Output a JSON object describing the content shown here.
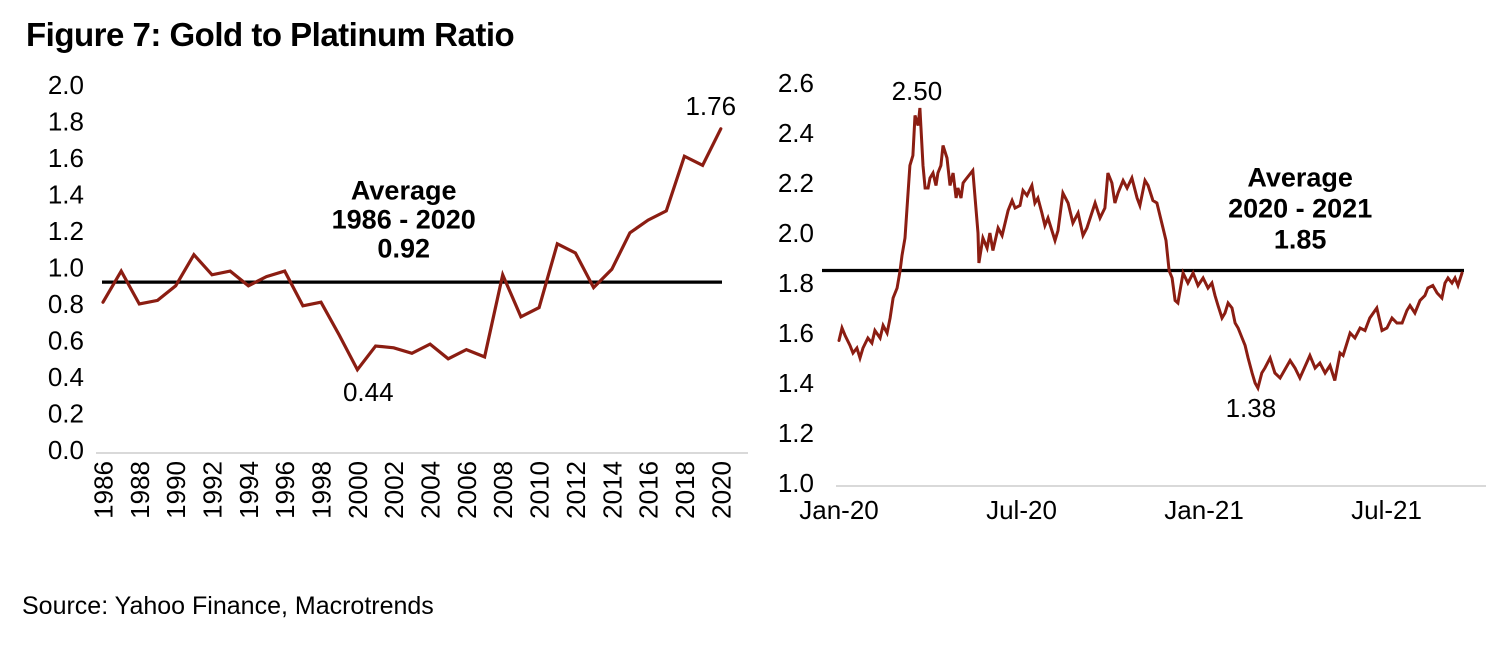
{
  "figure": {
    "title": "Figure 7: Gold to Platinum Ratio",
    "source": "Source: Yahoo Finance, Macrotrends"
  },
  "colors": {
    "series_line": "#8B1D12",
    "average_line": "#000000",
    "axis_line": "#D9D9D9",
    "text": "#000000",
    "background": "#FFFFFF"
  },
  "chart_data": [
    {
      "type": "line",
      "name": "gold-to-platinum-ratio-annual",
      "categories": [
        1986,
        1987,
        1988,
        1989,
        1990,
        1991,
        1992,
        1993,
        1994,
        1995,
        1996,
        1997,
        1998,
        1999,
        2000,
        2001,
        2002,
        2003,
        2004,
        2005,
        2006,
        2007,
        2008,
        2009,
        2010,
        2011,
        2012,
        2013,
        2014,
        2015,
        2016,
        2017,
        2018,
        2019,
        2020
      ],
      "values": [
        0.81,
        0.98,
        0.8,
        0.82,
        0.9,
        1.07,
        0.96,
        0.98,
        0.9,
        0.95,
        0.98,
        0.79,
        0.81,
        0.63,
        0.44,
        0.57,
        0.56,
        0.53,
        0.58,
        0.5,
        0.55,
        0.51,
        0.96,
        0.73,
        0.78,
        1.13,
        1.08,
        0.89,
        0.99,
        1.19,
        1.26,
        1.31,
        1.61,
        1.56,
        1.76
      ],
      "xlabel": "",
      "ylabel": "",
      "ylim": [
        0.0,
        2.0
      ],
      "ytick_labels": [
        "0.0",
        "0.2",
        "0.4",
        "0.6",
        "0.8",
        "1.0",
        "1.2",
        "1.4",
        "1.6",
        "1.8",
        "2.0"
      ],
      "xtick_labels": [
        "1986",
        "1988",
        "1990",
        "1992",
        "1994",
        "1996",
        "1998",
        "2000",
        "2002",
        "2004",
        "2006",
        "2008",
        "2010",
        "2012",
        "2014",
        "2016",
        "2018",
        "2020"
      ],
      "xtick_label_rotation": -90,
      "grid": false,
      "average_line": {
        "value": 0.92,
        "label_lines": [
          "Average",
          "1986 - 2020",
          "0.92"
        ],
        "label_anchor_x": 2002.55,
        "label_line_y": [
          1.424,
          1.266,
          1.107
        ]
      },
      "point_labels": [
        {
          "text": "1.76",
          "x": 2019.45,
          "y": 1.885
        },
        {
          "text": "0.44",
          "x": 2000.6,
          "y": 0.318
        }
      ]
    },
    {
      "type": "line",
      "name": "gold-to-platinum-ratio-2020-2021",
      "x_unit": "months-since-Jan-2020",
      "points": [
        [
          0,
          1.57
        ],
        [
          0.1,
          1.62
        ],
        [
          0.2,
          1.59
        ],
        [
          0.36,
          1.55
        ],
        [
          0.46,
          1.52
        ],
        [
          0.59,
          1.54
        ],
        [
          0.69,
          1.5
        ],
        [
          0.79,
          1.54
        ],
        [
          0.95,
          1.58
        ],
        [
          1.08,
          1.56
        ],
        [
          1.18,
          1.61
        ],
        [
          1.35,
          1.58
        ],
        [
          1.45,
          1.63
        ],
        [
          1.58,
          1.6
        ],
        [
          1.68,
          1.66
        ],
        [
          1.78,
          1.74
        ],
        [
          1.91,
          1.78
        ],
        [
          2.01,
          1.85
        ],
        [
          2.07,
          1.91
        ],
        [
          2.17,
          1.98
        ],
        [
          2.33,
          2.27
        ],
        [
          2.43,
          2.31
        ],
        [
          2.5,
          2.47
        ],
        [
          2.6,
          2.43
        ],
        [
          2.66,
          2.5
        ],
        [
          2.76,
          2.27
        ],
        [
          2.83,
          2.18
        ],
        [
          2.93,
          2.18
        ],
        [
          2.99,
          2.22
        ],
        [
          3.09,
          2.24
        ],
        [
          3.19,
          2.19
        ],
        [
          3.25,
          2.24
        ],
        [
          3.35,
          2.27
        ],
        [
          3.42,
          2.35
        ],
        [
          3.55,
          2.3
        ],
        [
          3.65,
          2.19
        ],
        [
          3.75,
          2.24
        ],
        [
          3.85,
          2.14
        ],
        [
          3.91,
          2.18
        ],
        [
          4.01,
          2.14
        ],
        [
          4.08,
          2.2
        ],
        [
          4.14,
          2.21
        ],
        [
          4.4,
          2.25
        ],
        [
          4.57,
          2.0
        ],
        [
          4.6,
          1.88
        ],
        [
          4.73,
          1.98
        ],
        [
          4.87,
          1.94
        ],
        [
          4.96,
          2.0
        ],
        [
          5.06,
          1.93
        ],
        [
          5.23,
          2.02
        ],
        [
          5.36,
          1.99
        ],
        [
          5.56,
          2.09
        ],
        [
          5.69,
          2.13
        ],
        [
          5.79,
          2.1
        ],
        [
          5.95,
          2.11
        ],
        [
          6.05,
          2.17
        ],
        [
          6.18,
          2.15
        ],
        [
          6.34,
          2.19
        ],
        [
          6.44,
          2.12
        ],
        [
          6.54,
          2.14
        ],
        [
          6.67,
          2.08
        ],
        [
          6.77,
          2.03
        ],
        [
          6.87,
          2.06
        ],
        [
          7.1,
          1.97
        ],
        [
          7.2,
          2.01
        ],
        [
          7.36,
          2.16
        ],
        [
          7.53,
          2.12
        ],
        [
          7.69,
          2.04
        ],
        [
          7.86,
          2.08
        ],
        [
          8.02,
          1.99
        ],
        [
          8.15,
          2.02
        ],
        [
          8.42,
          2.12
        ],
        [
          8.58,
          2.06
        ],
        [
          8.74,
          2.1
        ],
        [
          8.84,
          2.24
        ],
        [
          8.97,
          2.2
        ],
        [
          9.07,
          2.12
        ],
        [
          9.17,
          2.16
        ],
        [
          9.34,
          2.21
        ],
        [
          9.47,
          2.18
        ],
        [
          9.63,
          2.22
        ],
        [
          9.8,
          2.14
        ],
        [
          9.89,
          2.11
        ],
        [
          10.06,
          2.21
        ],
        [
          10.16,
          2.19
        ],
        [
          10.32,
          2.13
        ],
        [
          10.45,
          2.12
        ],
        [
          10.65,
          2.02
        ],
        [
          10.75,
          1.97
        ],
        [
          10.85,
          1.85
        ],
        [
          10.95,
          1.82
        ],
        [
          11.05,
          1.73
        ],
        [
          11.14,
          1.72
        ],
        [
          11.31,
          1.84
        ],
        [
          11.47,
          1.8
        ],
        [
          11.64,
          1.84
        ],
        [
          11.8,
          1.79
        ],
        [
          11.97,
          1.82
        ],
        [
          12.13,
          1.78
        ],
        [
          12.26,
          1.8
        ],
        [
          12.36,
          1.75
        ],
        [
          12.46,
          1.71
        ],
        [
          12.59,
          1.66
        ],
        [
          12.69,
          1.68
        ],
        [
          12.79,
          1.72
        ],
        [
          12.92,
          1.7
        ],
        [
          13.02,
          1.64
        ],
        [
          13.12,
          1.62
        ],
        [
          13.25,
          1.58
        ],
        [
          13.35,
          1.55
        ],
        [
          13.45,
          1.5
        ],
        [
          13.58,
          1.44
        ],
        [
          13.68,
          1.4
        ],
        [
          13.77,
          1.38
        ],
        [
          13.9,
          1.44
        ],
        [
          14.0,
          1.46
        ],
        [
          14.17,
          1.5
        ],
        [
          14.33,
          1.44
        ],
        [
          14.5,
          1.42
        ],
        [
          14.83,
          1.49
        ],
        [
          14.99,
          1.46
        ],
        [
          15.15,
          1.42
        ],
        [
          15.48,
          1.51
        ],
        [
          15.65,
          1.46
        ],
        [
          15.81,
          1.48
        ],
        [
          15.98,
          1.44
        ],
        [
          16.14,
          1.47
        ],
        [
          16.3,
          1.41
        ],
        [
          16.47,
          1.52
        ],
        [
          16.57,
          1.51
        ],
        [
          16.8,
          1.6
        ],
        [
          16.96,
          1.58
        ],
        [
          17.13,
          1.62
        ],
        [
          17.29,
          1.61
        ],
        [
          17.45,
          1.66
        ],
        [
          17.68,
          1.7
        ],
        [
          17.85,
          1.61
        ],
        [
          18.01,
          1.62
        ],
        [
          18.18,
          1.66
        ],
        [
          18.34,
          1.64
        ],
        [
          18.51,
          1.64
        ],
        [
          18.67,
          1.69
        ],
        [
          18.77,
          1.71
        ],
        [
          18.93,
          1.68
        ],
        [
          19.1,
          1.73
        ],
        [
          19.26,
          1.75
        ],
        [
          19.36,
          1.78
        ],
        [
          19.52,
          1.79
        ],
        [
          19.66,
          1.76
        ],
        [
          19.82,
          1.74
        ],
        [
          19.92,
          1.8
        ],
        [
          20.02,
          1.82
        ],
        [
          20.15,
          1.8
        ],
        [
          20.25,
          1.82
        ],
        [
          20.35,
          1.79
        ],
        [
          20.48,
          1.84
        ]
      ],
      "xlabel": "",
      "ylabel": "",
      "ylim": [
        1.0,
        2.6
      ],
      "ytick_labels": [
        "1.0",
        "1.2",
        "1.4",
        "1.6",
        "1.8",
        "2.0",
        "2.2",
        "2.4",
        "2.6"
      ],
      "xticks": [
        {
          "label": "Jan-20",
          "month": 0
        },
        {
          "label": "Jul-20",
          "month": 6
        },
        {
          "label": "Jan-21",
          "month": 12
        },
        {
          "label": "Jul-21",
          "month": 18
        }
      ],
      "grid": false,
      "average_line": {
        "value": 1.85,
        "label_lines": [
          "Average",
          "2020 - 2021",
          "1.85"
        ],
        "label_anchor_x": 15.16,
        "label_line_y": [
          2.224,
          2.1,
          1.976
        ]
      },
      "point_labels": [
        {
          "text": "2.50",
          "x": 2.56,
          "y": 2.568
        },
        {
          "text": "1.38",
          "x": 13.54,
          "y": 1.3
        }
      ]
    }
  ]
}
